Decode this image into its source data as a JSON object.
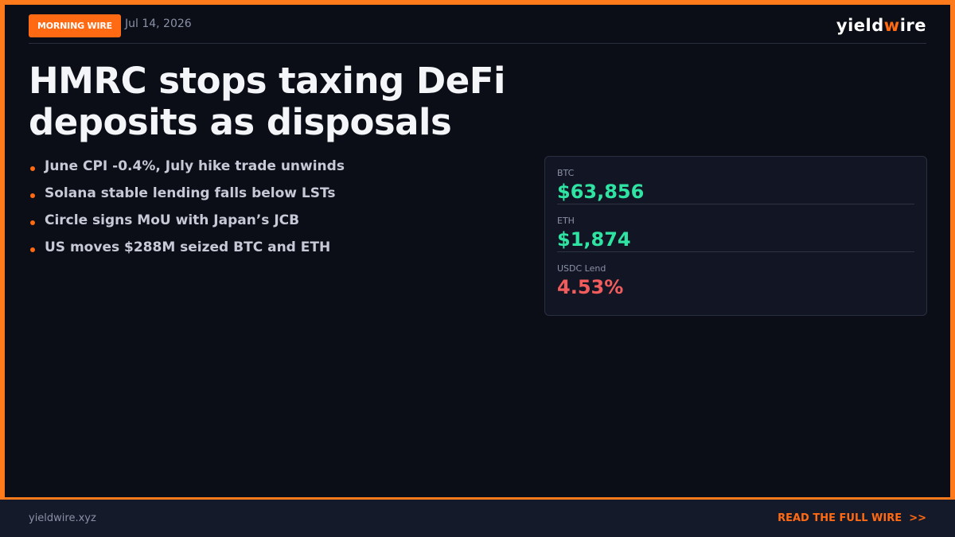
{
  "header": {
    "badge": "MORNING WIRE",
    "date": "Jul 14, 2026",
    "brand": [
      "yield",
      "w",
      "ire"
    ]
  },
  "headline": [
    "HMRC stops taxing DeFi",
    "deposits as disposals"
  ],
  "bullets": [
    "June CPI -0.4%, July hike trade unwinds",
    "Solana stable lending falls below LSTs",
    "Circle signs MoU with Japan’s JCB",
    "US moves $288M seized BTC and ETH"
  ],
  "stats": [
    {
      "label": "BTC",
      "value": "$63,856"
    },
    {
      "label": "ETH",
      "value": "$1,874"
    },
    {
      "label": "USDC Lend",
      "value": "4.53%"
    }
  ],
  "footer": {
    "site": "yieldwire.xyz",
    "cta": "READ THE FULL WIRE",
    "arrow": ">>"
  }
}
